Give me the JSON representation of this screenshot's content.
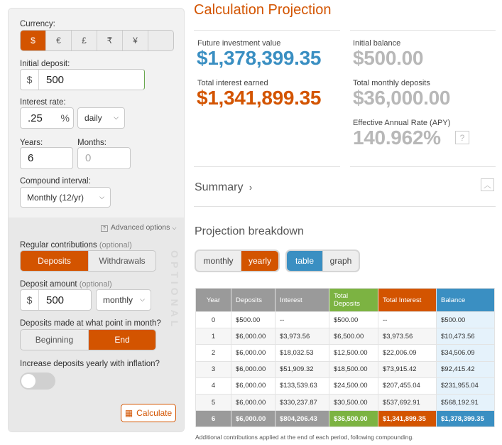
{
  "form": {
    "currency_label": "Currency:",
    "currencies": [
      "$",
      "€",
      "£",
      "₹",
      "¥",
      ""
    ],
    "initial_deposit_label": "Initial deposit:",
    "initial_deposit_prefix": "$",
    "initial_deposit_value": "500",
    "interest_rate_label": "Interest rate:",
    "interest_rate_value": ".25",
    "interest_rate_suffix": "%",
    "rate_period": "daily",
    "years_label": "Years:",
    "years_value": "6",
    "months_label": "Months:",
    "months_placeholder": "0",
    "compound_label": "Compound interval:",
    "compound_value": "Monthly (12/yr)",
    "advanced_label": "Advanced options",
    "optional_text": "OPTIONAL",
    "regular_label": "Regular contributions",
    "regular_optional": "(optional)",
    "regular_options": [
      "Deposits",
      "Withdrawals"
    ],
    "deposit_amount_label": "Deposit amount",
    "deposit_amount_optional": "(optional)",
    "deposit_amount_prefix": "$",
    "deposit_amount_value": "500",
    "deposit_frequency": "monthly",
    "point_label": "Deposits made at what point in month?",
    "point_options": [
      "Beginning",
      "End"
    ],
    "inflation_label": "Increase deposits yearly with inflation?",
    "calculate_label": "Calculate"
  },
  "results": {
    "title": "Calculation Projection",
    "future_label": "Future investment value",
    "future_value": "$1,378,399.35",
    "interest_label": "Total interest earned",
    "interest_value": "$1,341,899.35",
    "initial_label": "Initial balance",
    "initial_value": "$500.00",
    "monthly_label": "Total monthly deposits",
    "monthly_value": "$36,000.00",
    "apy_label": "Effective Annual Rate (APY)",
    "apy_value": "140.962%",
    "help_icon": "?"
  },
  "summary": {
    "label": "Summary"
  },
  "breakdown": {
    "title": "Projection breakdown",
    "period_options": [
      "monthly",
      "yearly"
    ],
    "view_options": [
      "table",
      "graph"
    ],
    "columns": [
      "Year",
      "Deposits",
      "Interest",
      "Total Deposits",
      "Total Interest",
      "Balance"
    ],
    "rows": [
      [
        "0",
        "$500.00",
        "--",
        "$500.00",
        "--",
        "$500.00"
      ],
      [
        "1",
        "$6,000.00",
        "$3,973.56",
        "$6,500.00",
        "$3,973.56",
        "$10,473.56"
      ],
      [
        "2",
        "$6,000.00",
        "$18,032.53",
        "$12,500.00",
        "$22,006.09",
        "$34,506.09"
      ],
      [
        "3",
        "$6,000.00",
        "$51,909.32",
        "$18,500.00",
        "$73,915.42",
        "$92,415.42"
      ],
      [
        "4",
        "$6,000.00",
        "$133,539.63",
        "$24,500.00",
        "$207,455.04",
        "$231,955.04"
      ],
      [
        "5",
        "$6,000.00",
        "$330,237.87",
        "$30,500.00",
        "$537,692.91",
        "$568,192.91"
      ],
      [
        "6",
        "$6,000.00",
        "$804,206.43",
        "$36,500.00",
        "$1,341,899.35",
        "$1,378,399.35"
      ]
    ],
    "footnote": "Additional contributions applied at the end of each period, following compounding."
  },
  "colors": {
    "accent_orange": "#d35400",
    "accent_blue": "#3a8fc2",
    "accent_green": "#7cb342",
    "muted_grey": "#b8b8b8"
  }
}
